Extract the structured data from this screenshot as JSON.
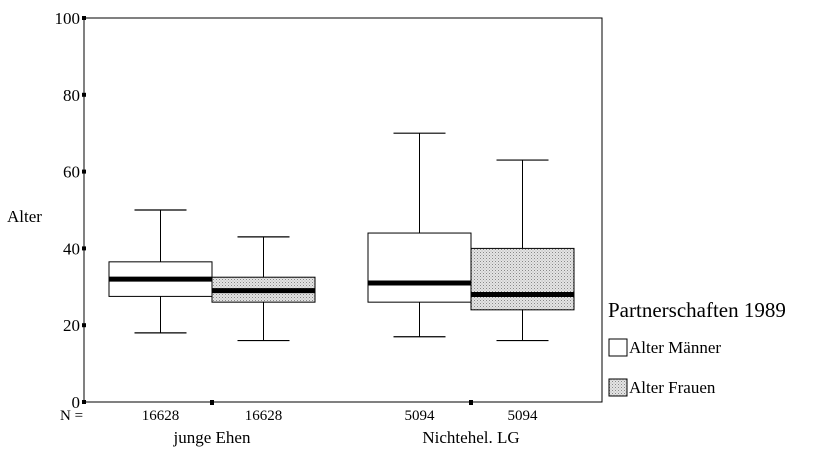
{
  "chart_data": {
    "type": "boxplot",
    "ylabel": "Alter",
    "ylim": [
      0,
      100
    ],
    "yticks": [
      0,
      20,
      40,
      60,
      80,
      100
    ],
    "n_label": "N =",
    "groups": [
      "junge Ehen",
      "Nichtehel. LG"
    ],
    "series": [
      {
        "name": "Alter Männer",
        "color": "#ffffff",
        "boxes": [
          {
            "group": "junge Ehen",
            "n": "16628",
            "whisker_low": 18,
            "q1": 27.5,
            "median": 32,
            "q3": 36.5,
            "whisker_high": 50
          },
          {
            "group": "Nichtehel. LG",
            "n": "5094",
            "whisker_low": 17,
            "q1": 26,
            "median": 31,
            "q3": 44,
            "whisker_high": 70
          }
        ]
      },
      {
        "name": "Alter Frauen",
        "color": "#d4d4d4",
        "boxes": [
          {
            "group": "junge Ehen",
            "n": "16628",
            "whisker_low": 16,
            "q1": 26,
            "median": 29,
            "q3": 32.5,
            "whisker_high": 43
          },
          {
            "group": "Nichtehel. LG",
            "n": "5094",
            "whisker_low": 16,
            "q1": 24,
            "median": 28,
            "q3": 40,
            "whisker_high": 63
          }
        ]
      }
    ],
    "legend": {
      "title": "Partnerschaften 1989",
      "position": "right"
    }
  }
}
